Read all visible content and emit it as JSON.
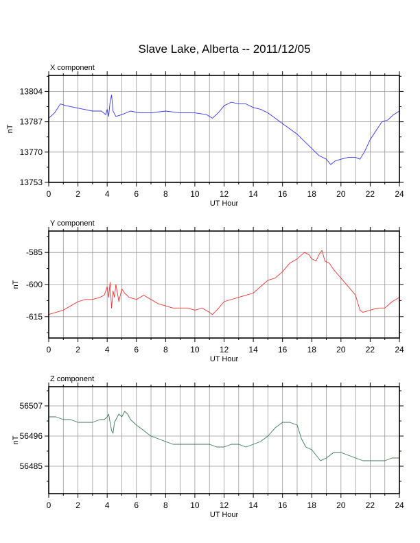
{
  "chart_data": {
    "title": "Slave Lake, Alberta -- 2011/12/05",
    "panels": [
      {
        "type": "line",
        "label": "X component",
        "xlabel": "UT Hour",
        "ylabel": "nT",
        "xlim": [
          0,
          24
        ],
        "ylim": [
          13753,
          13813
        ],
        "xticks": [
          0,
          2,
          4,
          6,
          8,
          10,
          12,
          14,
          16,
          18,
          20,
          22,
          24
        ],
        "yticks": [
          13753,
          13770,
          13787,
          13804
        ],
        "grid": true,
        "color": "#3333ee",
        "series": [
          {
            "x": [
              0,
              0.4,
              0.8,
              1.2,
              1.8,
              2.4,
              3.0,
              3.6,
              3.9,
              4.0,
              4.1,
              4.2,
              4.3,
              4.4,
              4.6,
              5.0,
              5.6,
              6.2,
              7.0,
              8.0,
              9.0,
              10.0,
              10.8,
              11.2,
              11.6,
              12.0,
              12.5,
              13.0,
              13.5,
              14.0,
              14.5,
              15.0,
              15.5,
              16.0,
              16.5,
              17.0,
              17.5,
              18.0,
              18.5,
              19.0,
              19.3,
              19.6,
              20.0,
              20.5,
              21.0,
              21.3,
              21.6,
              22.0,
              22.4,
              22.8,
              23.2,
              23.6,
              24.0
            ],
            "y": [
              13789,
              13792,
              13797,
              13796,
              13795,
              13794,
              13793,
              13793,
              13791,
              13794,
              13790,
              13798,
              13802,
              13793,
              13790,
              13791,
              13793,
              13792,
              13792,
              13793,
              13792,
              13792,
              13791,
              13789,
              13792,
              13796,
              13798,
              13797,
              13797,
              13795,
              13794,
              13792,
              13789,
              13786,
              13783,
              13780,
              13776,
              13772,
              13768,
              13766,
              13763,
              13765,
              13766,
              13767,
              13767,
              13766,
              13770,
              13777,
              13782,
              13787,
              13788,
              13791,
              13793
            ]
          }
        ]
      },
      {
        "type": "line",
        "label": "Y component",
        "xlabel": "UT Hour",
        "ylabel": "nT",
        "xlim": [
          0,
          24
        ],
        "ylim": [
          -625,
          -575
        ],
        "xticks": [
          0,
          2,
          4,
          6,
          8,
          10,
          12,
          14,
          16,
          18,
          20,
          22,
          24
        ],
        "yticks": [
          -615,
          -600,
          -585
        ],
        "grid": true,
        "color": "#ee3333",
        "series": [
          {
            "x": [
              0,
              0.5,
              1.0,
              1.5,
              2.0,
              2.5,
              3.0,
              3.5,
              3.8,
              4.0,
              4.1,
              4.2,
              4.3,
              4.4,
              4.5,
              4.6,
              4.7,
              4.8,
              5.0,
              5.2,
              5.5,
              6.0,
              6.5,
              7.0,
              7.5,
              8.0,
              8.5,
              9.0,
              9.5,
              10.0,
              10.5,
              11.0,
              11.2,
              11.5,
              12.0,
              12.5,
              13.0,
              13.5,
              14.0,
              14.5,
              15.0,
              15.5,
              16.0,
              16.5,
              17.0,
              17.5,
              17.8,
              18.0,
              18.3,
              18.5,
              18.7,
              18.9,
              19.2,
              19.5,
              20.0,
              20.5,
              21.0,
              21.3,
              21.5,
              22.0,
              22.5,
              23.0,
              23.5,
              24.0
            ],
            "y": [
              -614,
              -613,
              -612,
              -610,
              -608,
              -607,
              -607,
              -606,
              -605,
              -601,
              -606,
              -599,
              -611,
              -603,
              -606,
              -600,
              -604,
              -608,
              -602,
              -604,
              -606,
              -607,
              -605,
              -607,
              -609,
              -610,
              -611,
              -611,
              -611,
              -612,
              -611,
              -613,
              -614,
              -612,
              -608,
              -607,
              -606,
              -605,
              -604,
              -601,
              -598,
              -597,
              -594,
              -590,
              -588,
              -585,
              -586,
              -588,
              -589,
              -586,
              -584,
              -589,
              -590,
              -593,
              -597,
              -601,
              -605,
              -612,
              -613,
              -612,
              -611,
              -611,
              -608,
              -606
            ]
          }
        ]
      },
      {
        "type": "line",
        "label": "Z component",
        "xlabel": "UT Hour",
        "ylabel": "nT",
        "xlim": [
          0,
          24
        ],
        "ylim": [
          56475,
          56514
        ],
        "xticks": [
          0,
          2,
          4,
          6,
          8,
          10,
          12,
          14,
          16,
          18,
          20,
          22,
          24
        ],
        "yticks": [
          56485,
          56496,
          56507
        ],
        "grid": true,
        "color": "#3b7a57",
        "series": [
          {
            "x": [
              0,
              0.5,
              1.0,
              1.5,
              2.0,
              2.5,
              3.0,
              3.5,
              3.8,
              4.0,
              4.1,
              4.2,
              4.3,
              4.4,
              4.5,
              4.6,
              4.8,
              5.0,
              5.2,
              5.4,
              5.6,
              6.0,
              6.5,
              7.0,
              7.5,
              8.0,
              8.5,
              9.0,
              9.5,
              10.0,
              10.5,
              11.0,
              11.5,
              12.0,
              12.5,
              13.0,
              13.5,
              14.0,
              14.5,
              15.0,
              15.5,
              16.0,
              16.5,
              17.0,
              17.3,
              17.6,
              18.0,
              18.3,
              18.6,
              19.0,
              19.5,
              20.0,
              20.5,
              21.0,
              21.5,
              22.0,
              22.5,
              23.0,
              23.5,
              24.0
            ],
            "y": [
              56503,
              56503,
              56502,
              56502,
              56501,
              56501,
              56501,
              56502,
              56502,
              56503,
              56504,
              56501,
              56498,
              56497,
              56501,
              56502,
              56504,
              56503,
              56505,
              56504,
              56502,
              56500,
              56498,
              56496,
              56495,
              56494,
              56493,
              56493,
              56493,
              56493,
              56493,
              56493,
              56492,
              56492,
              56493,
              56493,
              56492,
              56493,
              56494,
              56496,
              56499,
              56501,
              56501,
              56500,
              56495,
              56492,
              56491,
              56489,
              56487,
              56488,
              56490,
              56490,
              56489,
              56488,
              56487,
              56487,
              56487,
              56487,
              56488,
              56488
            ]
          }
        ]
      }
    ]
  }
}
